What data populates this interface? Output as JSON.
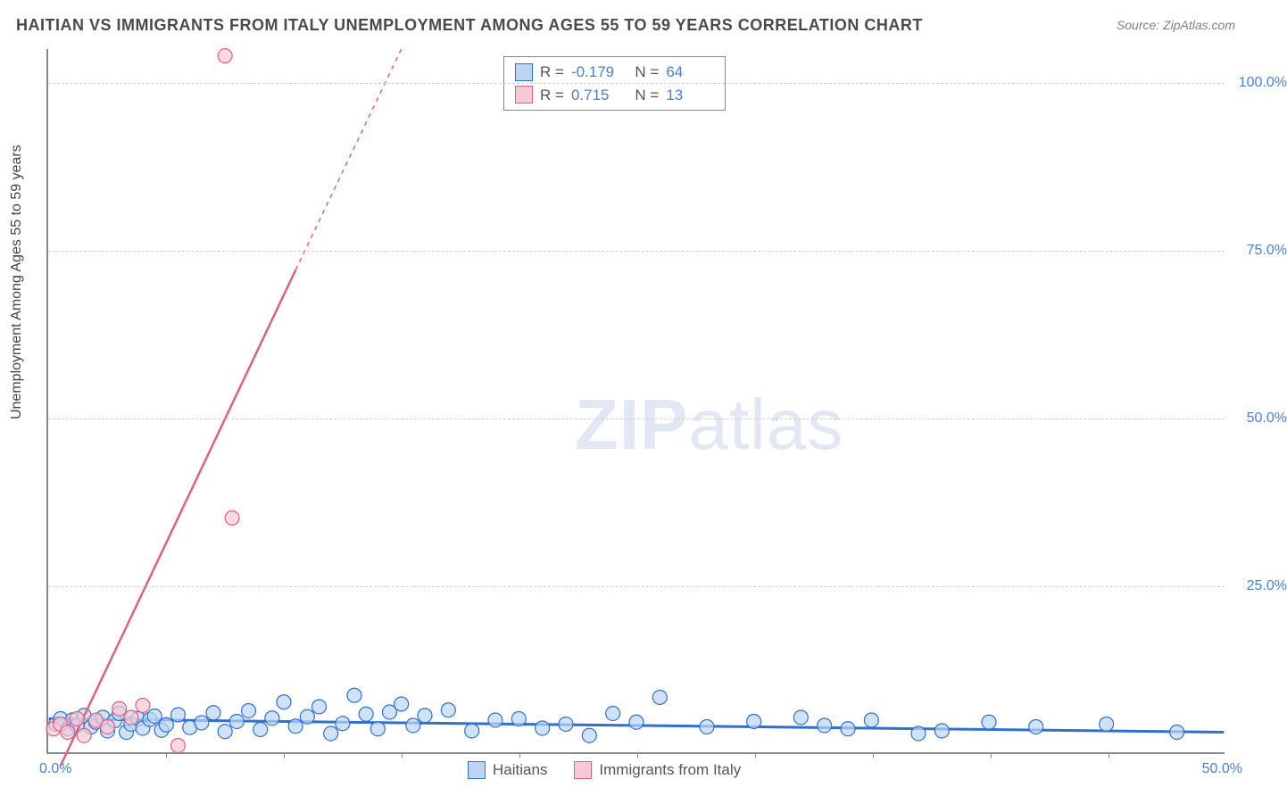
{
  "title": "HAITIAN VS IMMIGRANTS FROM ITALY UNEMPLOYMENT AMONG AGES 55 TO 59 YEARS CORRELATION CHART",
  "source": "Source: ZipAtlas.com",
  "ylabel": "Unemployment Among Ages 55 to 59 years",
  "watermark_bold": "ZIP",
  "watermark_light": "atlas",
  "chart": {
    "type": "scatter",
    "xlim": [
      0,
      50
    ],
    "ylim": [
      0,
      105
    ],
    "x_ticks": [
      0,
      50
    ],
    "x_tick_labels": [
      "0.0%",
      "50.0%"
    ],
    "x_minor_ticks": [
      5,
      10,
      15,
      20,
      25,
      30,
      35,
      40,
      45
    ],
    "y_ticks": [
      25,
      50,
      75,
      100
    ],
    "y_tick_labels": [
      "25.0%",
      "50.0%",
      "75.0%",
      "100.0%"
    ],
    "background_color": "#ffffff",
    "grid_color": "#d0d0d0",
    "axis_color": "#888888",
    "label_color": "#4a7fd6",
    "series": [
      {
        "name": "Haitians",
        "marker_fill": "#bcd5f5",
        "marker_stroke": "#2f6fd0",
        "line_color": "#2f6fd0",
        "line_width": 3,
        "R": "-0.179",
        "N": "64",
        "trend": {
          "x1": 0,
          "y1": 5.0,
          "x2": 50,
          "y2": 3.0
        },
        "points": [
          [
            0.3,
            4.2
          ],
          [
            0.5,
            5.0
          ],
          [
            0.8,
            3.5
          ],
          [
            1.0,
            4.8
          ],
          [
            1.2,
            4.0
          ],
          [
            1.5,
            5.5
          ],
          [
            1.8,
            3.8
          ],
          [
            2.0,
            4.5
          ],
          [
            2.3,
            5.2
          ],
          [
            2.5,
            3.2
          ],
          [
            2.8,
            4.7
          ],
          [
            3.0,
            5.8
          ],
          [
            3.3,
            3.0
          ],
          [
            3.5,
            4.2
          ],
          [
            3.8,
            5.0
          ],
          [
            4.0,
            3.6
          ],
          [
            4.3,
            4.9
          ],
          [
            4.5,
            5.4
          ],
          [
            4.8,
            3.3
          ],
          [
            5.0,
            4.1
          ],
          [
            5.5,
            5.6
          ],
          [
            6.0,
            3.7
          ],
          [
            6.5,
            4.4
          ],
          [
            7.0,
            5.9
          ],
          [
            7.5,
            3.1
          ],
          [
            8.0,
            4.6
          ],
          [
            8.5,
            6.2
          ],
          [
            9.0,
            3.4
          ],
          [
            9.5,
            5.1
          ],
          [
            10.0,
            7.5
          ],
          [
            10.5,
            3.9
          ],
          [
            11.0,
            5.3
          ],
          [
            11.5,
            6.8
          ],
          [
            12.0,
            2.8
          ],
          [
            12.5,
            4.3
          ],
          [
            13.0,
            8.5
          ],
          [
            13.5,
            5.7
          ],
          [
            14.0,
            3.5
          ],
          [
            14.5,
            6.0
          ],
          [
            15.0,
            7.2
          ],
          [
            15.5,
            4.0
          ],
          [
            16.0,
            5.5
          ],
          [
            17.0,
            6.3
          ],
          [
            18.0,
            3.2
          ],
          [
            19.0,
            4.8
          ],
          [
            20.0,
            5.0
          ],
          [
            21.0,
            3.6
          ],
          [
            22.0,
            4.2
          ],
          [
            23.0,
            2.5
          ],
          [
            24.0,
            5.8
          ],
          [
            25.0,
            4.5
          ],
          [
            26.0,
            8.2
          ],
          [
            28.0,
            3.8
          ],
          [
            30.0,
            4.6
          ],
          [
            32.0,
            5.2
          ],
          [
            33.0,
            4.0
          ],
          [
            34.0,
            3.5
          ],
          [
            35.0,
            4.8
          ],
          [
            37.0,
            2.8
          ],
          [
            38.0,
            3.2
          ],
          [
            40.0,
            4.5
          ],
          [
            42.0,
            3.8
          ],
          [
            45.0,
            4.2
          ],
          [
            48.0,
            3.0
          ]
        ]
      },
      {
        "name": "Immigrants from Italy",
        "marker_fill": "#f5c9d5",
        "marker_stroke": "#e0607f",
        "line_color": "#e0607f",
        "line_width": 2.5,
        "R": "0.715",
        "N": "13",
        "trend": {
          "x1": 0.5,
          "y1": -2,
          "x2": 10.5,
          "y2": 72
        },
        "trend_dashed": {
          "x1": 10.5,
          "y1": 72,
          "x2": 15.0,
          "y2": 105
        },
        "points": [
          [
            0.2,
            3.5
          ],
          [
            0.5,
            4.2
          ],
          [
            0.8,
            3.0
          ],
          [
            1.2,
            5.0
          ],
          [
            1.5,
            2.5
          ],
          [
            2.0,
            4.8
          ],
          [
            2.5,
            3.8
          ],
          [
            3.0,
            6.5
          ],
          [
            3.5,
            5.2
          ],
          [
            4.0,
            7.0
          ],
          [
            5.5,
            1.0
          ],
          [
            7.8,
            35.0
          ],
          [
            7.5,
            104.0
          ]
        ]
      }
    ]
  },
  "legend_bottom": [
    {
      "label": "Haitians",
      "fill": "#bcd5f5",
      "stroke": "#2f6fd0"
    },
    {
      "label": "Immigrants from Italy",
      "fill": "#f5c9d5",
      "stroke": "#e0607f"
    }
  ]
}
